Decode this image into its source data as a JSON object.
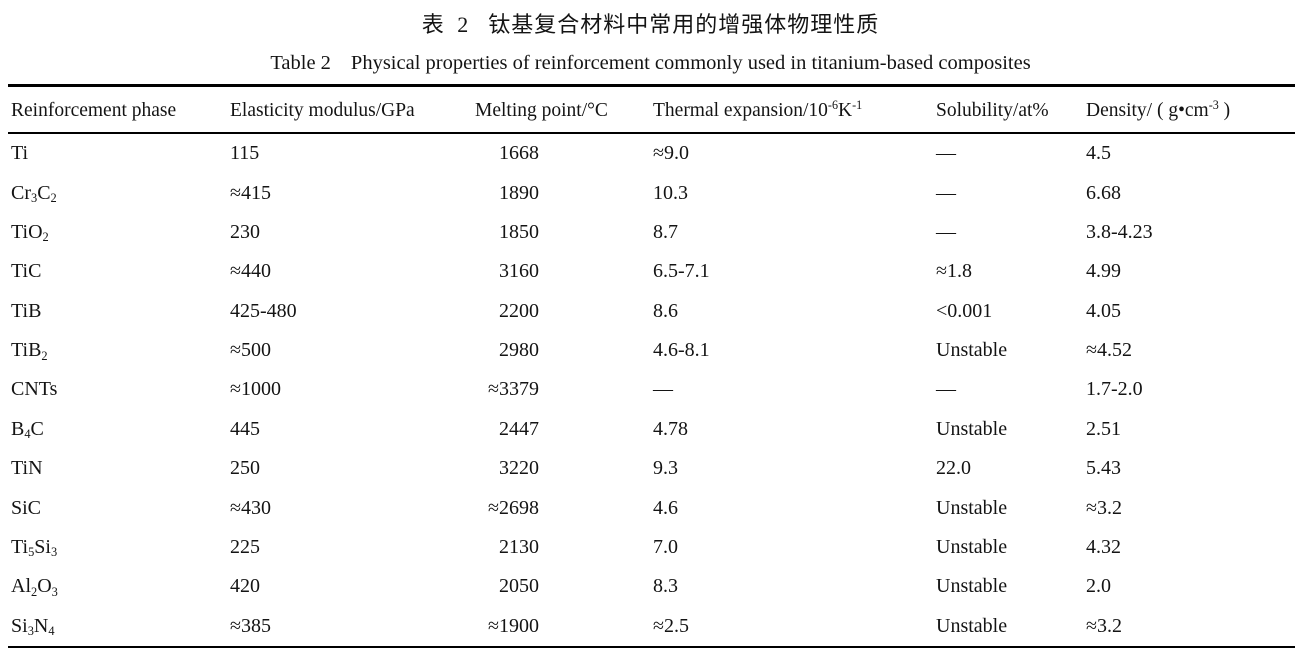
{
  "page": {
    "background": "#ffffff",
    "text_color": "#141414",
    "rule_color": "#000000"
  },
  "caption_zh": {
    "label": "表 2",
    "text": "钛基复合材料中常用的增强体物理性质"
  },
  "caption_en": {
    "label": "Table 2",
    "text": "Physical properties of reinforcement commonly used in titanium-based composites"
  },
  "table": {
    "columns": [
      {
        "id": "phase",
        "label": "Reinforcement phase"
      },
      {
        "id": "elasticity",
        "label": "Elasticity modulus/GPa"
      },
      {
        "id": "melting",
        "label": "Melting point/°C"
      },
      {
        "id": "expansion",
        "label": "Thermal expansion/10^{-6}K^{-1}"
      },
      {
        "id": "solubility",
        "label": "Solubility/at%"
      },
      {
        "id": "density",
        "label": "Density/ ( g•cm^{-3} )"
      }
    ],
    "rows": [
      {
        "phase": "Ti",
        "elasticity": "115",
        "melting": "1668",
        "expansion": "≈9.0",
        "solubility": "—",
        "density": "4.5"
      },
      {
        "phase": "Cr_{3}C_{2}",
        "elasticity": "≈415",
        "melting": "1890",
        "expansion": "10.3",
        "solubility": "—",
        "density": "6.68"
      },
      {
        "phase": "TiO_{2}",
        "elasticity": "230",
        "melting": "1850",
        "expansion": "8.7",
        "solubility": "—",
        "density": "3.8-4.23"
      },
      {
        "phase": "TiC",
        "elasticity": "≈440",
        "melting": "3160",
        "expansion": "6.5-7.1",
        "solubility": "≈1.8",
        "density": "4.99"
      },
      {
        "phase": "TiB",
        "elasticity": "425-480",
        "melting": "2200",
        "expansion": "8.6",
        "solubility": "<0.001",
        "density": "4.05"
      },
      {
        "phase": "TiB_{2}",
        "elasticity": "≈500",
        "melting": "2980",
        "expansion": "4.6-8.1",
        "solubility": "Unstable",
        "density": "≈4.52"
      },
      {
        "phase": "CNTs",
        "elasticity": "≈1000",
        "melting": "≈3379",
        "expansion": "—",
        "solubility": "—",
        "density": "1.7-2.0"
      },
      {
        "phase": "B_{4}C",
        "elasticity": "445",
        "melting": "2447",
        "expansion": "4.78",
        "solubility": "Unstable",
        "density": "2.51"
      },
      {
        "phase": "TiN",
        "elasticity": "250",
        "melting": "3220",
        "expansion": "9.3",
        "solubility": "22.0",
        "density": "5.43"
      },
      {
        "phase": "SiC",
        "elasticity": "≈430",
        "melting": "≈2698",
        "expansion": "4.6",
        "solubility": "Unstable",
        "density": "≈3.2"
      },
      {
        "phase": "Ti_{5}Si_{3}",
        "elasticity": "225",
        "melting": "2130",
        "expansion": "7.0",
        "solubility": "Unstable",
        "density": "4.32"
      },
      {
        "phase": "Al_{2}O_{3}",
        "elasticity": "420",
        "melting": "2050",
        "expansion": "8.3",
        "solubility": "Unstable",
        "density": "2.0"
      },
      {
        "phase": "Si_{3}N_{4}",
        "elasticity": "≈385",
        "melting": "≈1900",
        "expansion": "≈2.5",
        "solubility": "Unstable",
        "density": "≈3.2"
      }
    ]
  }
}
